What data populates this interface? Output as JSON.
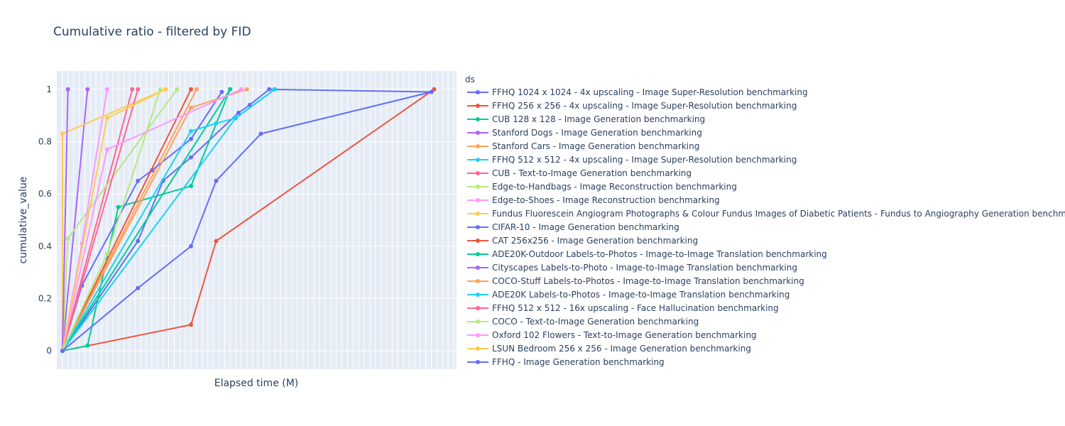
{
  "chart_data": {
    "type": "line",
    "title": "Cumulative ratio - filtered by FID",
    "xlabel": "Elapsed time (M)",
    "ylabel": "cumulative_value",
    "x_tick_labels": false,
    "xlim": [
      -2,
      141
    ],
    "ylim": [
      -0.07,
      1.07
    ],
    "y_ticks": [
      0,
      0.2,
      0.4,
      0.6,
      0.8,
      1
    ],
    "y_tick_labels": [
      "0",
      "0.2",
      "0.4",
      "0.6",
      "0.8",
      "1"
    ],
    "grid": true,
    "legend_title": "ds",
    "legend_position": "right",
    "series": [
      {
        "name": "FFHQ 1024 x 1024 - 4x upscaling - Image Super-Resolution benchmarking",
        "color": "#636efa",
        "x": [
          0,
          27,
          36,
          46,
          63,
          67,
          74,
          132
        ],
        "y": [
          0,
          0.42,
          0.65,
          0.74,
          0.91,
          0.94,
          1,
          0.99
        ]
      },
      {
        "name": "FFHQ 256 x 256 - 4x upscaling - Image Super-Resolution benchmarking",
        "color": "#EF553B",
        "x": [
          0,
          46,
          55,
          133
        ],
        "y": [
          0,
          0.1,
          0.42,
          1
        ]
      },
      {
        "name": "CUB 128 x 128 - Image Generation benchmarking",
        "color": "#00cc96",
        "x": [
          0,
          9,
          20,
          46,
          60
        ],
        "y": [
          0,
          0.02,
          0.55,
          0.63,
          1
        ]
      },
      {
        "name": "Stanford Dogs - Image Generation benchmarking",
        "color": "#ab63fa",
        "x": [
          0,
          9
        ],
        "y": [
          0,
          1
        ]
      },
      {
        "name": "Stanford Cars - Image Generation benchmarking",
        "color": "#FFA15A",
        "x": [
          0,
          48
        ],
        "y": [
          0,
          1
        ]
      },
      {
        "name": "FFHQ 512 x 512 - 4x upscaling - Image Super-Resolution benchmarking",
        "color": "#19d3f3",
        "x": [
          0,
          62,
          76
        ],
        "y": [
          0,
          0.89,
          1
        ]
      },
      {
        "name": "CUB - Text-to-Image Generation benchmarking",
        "color": "#FF6692",
        "x": [
          0,
          25
        ],
        "y": [
          0,
          1
        ]
      },
      {
        "name": "Edge-to-Handbags - Image Reconstruction benchmarking",
        "color": "#B6E880",
        "x": [
          0,
          2,
          41
        ],
        "y": [
          0,
          0.43,
          1
        ]
      },
      {
        "name": "Edge-to-Shoes - Image Reconstruction benchmarking",
        "color": "#FF97FF",
        "x": [
          0,
          7,
          16
        ],
        "y": [
          0,
          0.41,
          1
        ]
      },
      {
        "name": "Fundus Fluorescein Angiogram Photographs & Colour Fundus Images of Diabetic Patients - Fundus to Angiography Generation benchmarking",
        "color": "#FECB52",
        "x": [
          0,
          0,
          37
        ],
        "y": [
          0,
          0.83,
          1
        ]
      },
      {
        "name": "CIFAR-10 - Image Generation benchmarking",
        "color": "#636efa",
        "x": [
          0,
          7,
          27,
          32,
          46,
          57
        ],
        "y": [
          0,
          0.25,
          0.65,
          0.69,
          0.81,
          0.99
        ]
      },
      {
        "name": "CAT 256x256 - Image Generation benchmarking",
        "color": "#EF553B",
        "x": [
          0,
          46
        ],
        "y": [
          0,
          1
        ]
      },
      {
        "name": "ADE20K-Outdoor Labels-to-Photos - Image-to-Image Translation benchmarking",
        "color": "#00cc96",
        "x": [
          0,
          60
        ],
        "y": [
          0,
          1
        ]
      },
      {
        "name": "Cityscapes Labels-to-Photo - Image-to-Image Translation benchmarking",
        "color": "#ab63fa",
        "x": [
          0,
          2
        ],
        "y": [
          0,
          1
        ]
      },
      {
        "name": "COCO-Stuff Labels-to-Photos - Image-to-Image Translation benchmarking",
        "color": "#FFA15A",
        "x": [
          0,
          46,
          66
        ],
        "y": [
          0,
          0.93,
          1
        ]
      },
      {
        "name": "ADE20K Labels-to-Photos - Image-to-Image Translation benchmarking",
        "color": "#19d3f3",
        "x": [
          0,
          46,
          55,
          62,
          76
        ],
        "y": [
          0,
          0.84,
          0.87,
          0.89,
          1
        ]
      },
      {
        "name": "FFHQ 512 x 512 - 16x upscaling - Face Hallucination benchmarking",
        "color": "#FF6692",
        "x": [
          0,
          27
        ],
        "y": [
          0,
          1
        ]
      },
      {
        "name": "COCO - Text-to-Image Generation benchmarking",
        "color": "#B6E880",
        "x": [
          0,
          16,
          35
        ],
        "y": [
          0,
          0.37,
          1
        ]
      },
      {
        "name": "Oxford 102 Flowers - Text-to-Image Generation benchmarking",
        "color": "#FF97FF",
        "x": [
          0,
          16,
          64
        ],
        "y": [
          0,
          0.77,
          1
        ]
      },
      {
        "name": "LSUN Bedroom 256 x 256 - Image Generation benchmarking",
        "color": "#FECB52",
        "x": [
          0,
          16,
          37
        ],
        "y": [
          0,
          0.89,
          1
        ]
      },
      {
        "name": "FFHQ - Image Generation benchmarking",
        "color": "#636efa",
        "x": [
          0,
          27,
          46,
          55,
          71,
          132
        ],
        "y": [
          0,
          0.24,
          0.4,
          0.65,
          0.83,
          0.99
        ]
      }
    ]
  }
}
